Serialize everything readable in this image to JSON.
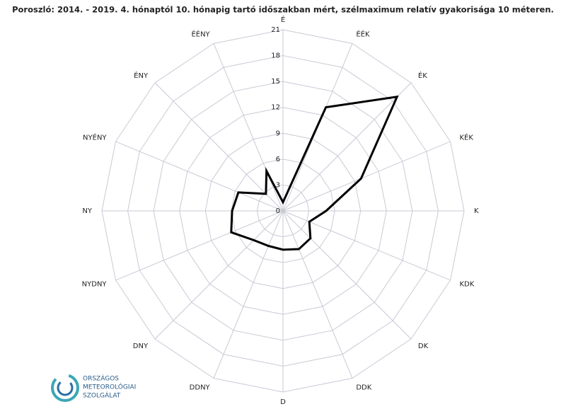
{
  "chart_data": {
    "type": "radar",
    "title": "Poroszló: 2014. - 2019. 4. hónaptól 10. hónapig tartó időszakban mért, szélmaximum relatív gyakorisága 10 méteren.",
    "categories": [
      "É",
      "ÉÉK",
      "ÉK",
      "KÉK",
      "K",
      "KDK",
      "DK",
      "DDK",
      "D",
      "DDNY",
      "DNY",
      "NYDNY",
      "NY",
      "NYÉNY",
      "ÉNY",
      "ÉÉNY"
    ],
    "values": [
      1,
      13,
      18.7,
      9.8,
      5,
      3.3,
      4.5,
      4.8,
      4.5,
      4.4,
      4.8,
      6.5,
      5.9,
      5.6,
      2.8,
      5
    ],
    "color": "#000000",
    "ylim": [
      0,
      21
    ],
    "yticks": [
      0,
      3,
      6,
      9,
      12,
      15,
      18,
      21
    ],
    "grid": true
  },
  "logo_text": [
    "ORSZÁGOS",
    "METEOROLÓGIAI",
    "SZOLGÁLAT"
  ]
}
